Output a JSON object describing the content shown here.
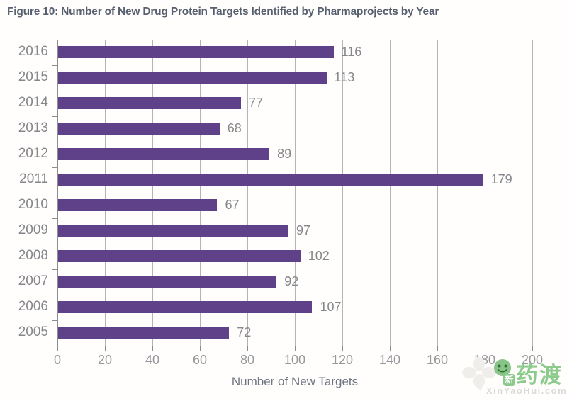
{
  "chart_data": {
    "type": "bar",
    "orientation": "horizontal",
    "title": "Figure 10: Number of New Drug Protein Targets Identified by Pharmaprojects by Year",
    "categories": [
      "2016",
      "2015",
      "2014",
      "2013",
      "2012",
      "2011",
      "2010",
      "2009",
      "2008",
      "2007",
      "2006",
      "2005"
    ],
    "values": [
      116,
      113,
      77,
      68,
      89,
      179,
      67,
      97,
      102,
      92,
      107,
      72
    ],
    "xlabel": "Number of New Targets",
    "ylabel": "",
    "xlim": [
      0,
      200
    ],
    "xticks": [
      0,
      20,
      40,
      60,
      80,
      100,
      120,
      140,
      160,
      180,
      200
    ],
    "grid": "vertical",
    "legend": "none",
    "data_labels": "outside-end"
  },
  "colors": {
    "bar": "#5e4189",
    "gridline": "#b3b4b6",
    "axis": "#8b8d90",
    "category_label": "#85878b",
    "value_label": "#85878b",
    "tick_label": "#95979a",
    "title": "#57606f",
    "axis_title": "#6d7480"
  },
  "watermark": {
    "brand_text": "药渡",
    "badge_char": "新",
    "domain_text": "XinYaoHui.com"
  }
}
